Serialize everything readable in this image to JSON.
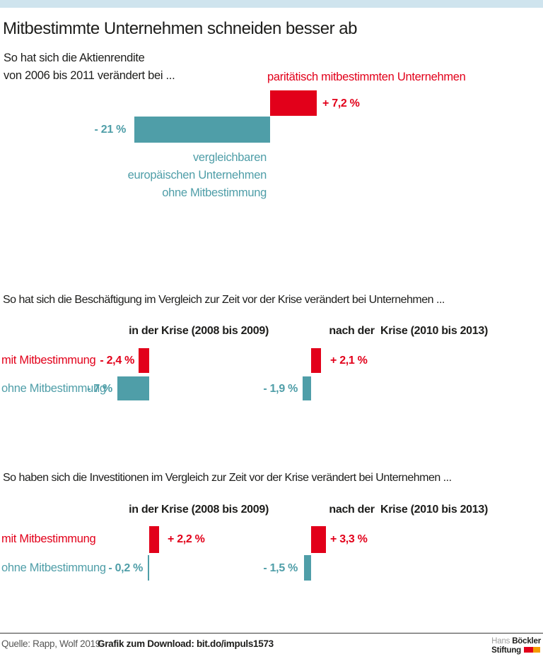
{
  "page": {
    "title": "Mitbestimmte Unternehmen schneiden besser ab",
    "colors": {
      "red": "#e2001a",
      "teal": "#4f9ea8",
      "topbar": "#cfe4ee",
      "text": "#1d1d1b"
    }
  },
  "chart_data": [
    {
      "type": "bar",
      "orientation": "horizontal",
      "unit": "%",
      "title": "So hat sich die Aktienrendite von 2006 bis 2011 verändert bei ...",
      "title_lines": [
        "So hat sich die Aktienrendite",
        "von 2006 bis 2011 verändert bei ..."
      ],
      "series": [
        {
          "name": "paritätisch mitbestimmten Unternehmen",
          "value": 7.2,
          "label": "+ 7,2 %",
          "color": "#e2001a"
        },
        {
          "name": "vergleichbaren europäischen Unternehmen ohne Mitbestimmung",
          "name_lines": [
            "vergleichbaren",
            "europäischen Unternehmen",
            "ohne Mitbestimmung"
          ],
          "value": -21,
          "label": "- 21 %",
          "color": "#4f9ea8"
        }
      ]
    },
    {
      "type": "bar",
      "orientation": "horizontal",
      "unit": "%",
      "title": "So hat sich die Beschäftigung im Vergleich zur Zeit vor der Krise verändert bei Unternehmen ...",
      "columns": [
        "in der Krise (2008 bis 2009)",
        "nach der  Krise (2010 bis 2013)"
      ],
      "series": [
        {
          "name": "mit Mitbestimmung",
          "color": "#e2001a",
          "values": [
            -2.4,
            2.1
          ],
          "labels": [
            "- 2,4 %",
            "+ 2,1 %"
          ]
        },
        {
          "name": "ohne Mitbestimmung",
          "color": "#4f9ea8",
          "values": [
            -7,
            -1.9
          ],
          "labels": [
            "- 7 %",
            "- 1,9 %"
          ]
        }
      ]
    },
    {
      "type": "bar",
      "orientation": "horizontal",
      "unit": "%",
      "title": "So haben sich die Investitionen im Vergleich zur Zeit vor der Krise verändert bei Unternehmen ...",
      "columns": [
        "in der Krise (2008 bis 2009)",
        "nach der  Krise (2010 bis 2013)"
      ],
      "series": [
        {
          "name": "mit Mitbestimmung",
          "color": "#e2001a",
          "values": [
            2.2,
            3.3
          ],
          "labels": [
            "+ 2,2 %",
            "+ 3,3 %"
          ]
        },
        {
          "name": "ohne Mitbestimmung",
          "color": "#4f9ea8",
          "values": [
            -0.2,
            -1.5
          ],
          "labels": [
            "- 0,2 %",
            "- 1,5 %"
          ]
        }
      ]
    }
  ],
  "footer": {
    "source": "Quelle: Rapp, Wolf 2019",
    "download": "Grafik zum Download: bit.do/impuls1573",
    "logo": {
      "name_regular": "Hans",
      "name_bold": "Böckler",
      "line2": "Stiftung"
    }
  }
}
